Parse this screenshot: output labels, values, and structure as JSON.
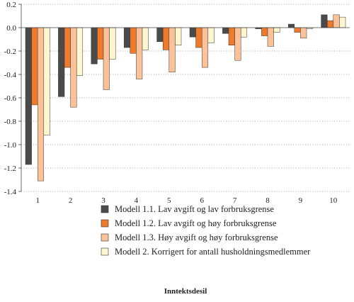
{
  "chart_data": {
    "type": "bar",
    "xlabel": "Inntektsdesil",
    "ylabel": "",
    "ylim": [
      -1.4,
      0.2
    ],
    "yticks": [
      0.2,
      0.0,
      -0.2,
      -0.4,
      -0.6,
      -0.8,
      -1.0,
      -1.2,
      -1.4
    ],
    "ytick_labels": [
      "0.2",
      "0.0",
      "-0.2",
      "-0.4",
      "-0.6",
      "-0.8",
      "-1.0",
      "-1.2",
      "-1.4"
    ],
    "grid": "horizontal dotted",
    "legend_position": "bottom",
    "categories": [
      "1",
      "2",
      "3",
      "4",
      "5",
      "6",
      "7",
      "8",
      "9",
      "10"
    ],
    "series": [
      {
        "name": "Modell 1.1. Lav avgift og lav forbruksgrense",
        "color": "#4a4a4a",
        "values": [
          -1.17,
          -0.59,
          -0.31,
          -0.17,
          -0.12,
          -0.08,
          -0.05,
          -0.01,
          0.03,
          0.11
        ]
      },
      {
        "name": "Modell 1.2. Lav avgift og høy forbruksgrense",
        "color": "#ef7a2b",
        "values": [
          -0.66,
          -0.34,
          -0.27,
          -0.22,
          -0.19,
          -0.17,
          -0.15,
          -0.07,
          -0.04,
          0.06
        ]
      },
      {
        "name": "Modell 1.3. Høy avgift og høy forbruksgrense",
        "color": "#fbc199",
        "values": [
          -1.31,
          -0.68,
          -0.53,
          -0.44,
          -0.38,
          -0.34,
          -0.28,
          -0.16,
          -0.09,
          0.11
        ]
      },
      {
        "name": "Modell 2. Korrigert for antall husholdningsmedlemmer",
        "color": "#fdf6cf",
        "values": [
          -0.92,
          -0.41,
          -0.27,
          -0.19,
          -0.15,
          -0.13,
          -0.08,
          -0.04,
          -0.01,
          0.09
        ]
      }
    ]
  }
}
